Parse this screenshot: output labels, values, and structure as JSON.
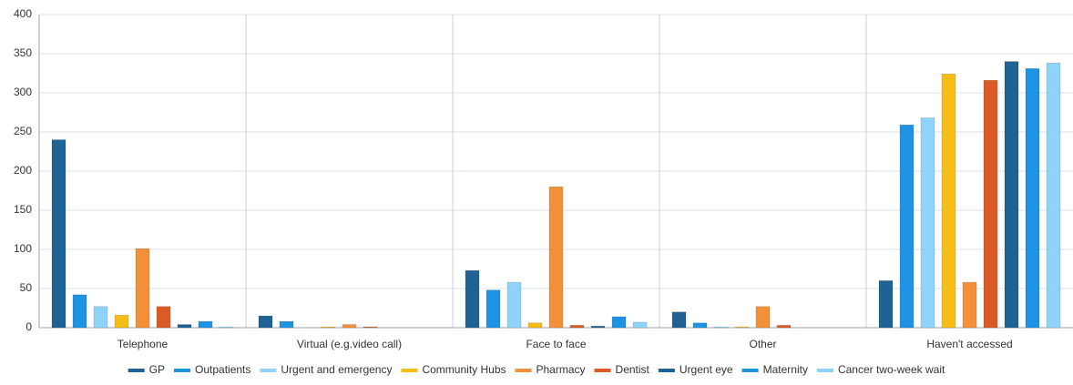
{
  "chart_data": {
    "type": "bar",
    "categories": [
      "Telephone",
      "Virtual (e.g.video call)",
      "Face to face",
      "Other",
      "Haven't accessed"
    ],
    "series": [
      {
        "name": "GP",
        "color": "#1f6394",
        "values": [
          240,
          15,
          73,
          20,
          60
        ]
      },
      {
        "name": "Outpatients",
        "color": "#1e93e3",
        "values": [
          42,
          8,
          48,
          6,
          259
        ]
      },
      {
        "name": "Urgent and emergency",
        "color": "#8fd3f8",
        "values": [
          27,
          0,
          58,
          1,
          268
        ]
      },
      {
        "name": "Community Hubs",
        "color": "#f6bd16",
        "values": [
          16,
          1,
          6,
          1,
          324
        ]
      },
      {
        "name": "Pharmacy",
        "color": "#f5903a",
        "values": [
          101,
          4,
          180,
          27,
          58
        ]
      },
      {
        "name": "Dentist",
        "color": "#dc5a25",
        "values": [
          27,
          1,
          3,
          3,
          316
        ]
      },
      {
        "name": "Urgent eye",
        "color": "#1f6394",
        "values": [
          4,
          0,
          2,
          0,
          340
        ]
      },
      {
        "name": "Maternity",
        "color": "#1e93e3",
        "values": [
          8,
          0,
          14,
          0,
          331
        ]
      },
      {
        "name": "Cancer two-week wait",
        "color": "#8fd3f8",
        "values": [
          1,
          0,
          7,
          0,
          338
        ]
      }
    ],
    "ylim": [
      0,
      400
    ],
    "yticks": [
      0,
      50,
      100,
      150,
      200,
      250,
      300,
      350,
      400
    ],
    "grid": true
  }
}
